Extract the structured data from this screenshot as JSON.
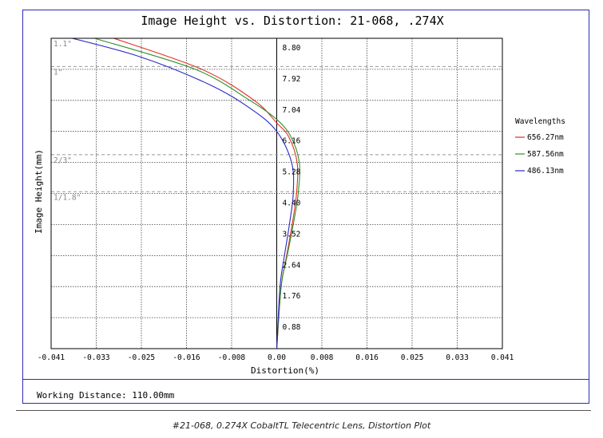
{
  "chart_data": {
    "type": "line",
    "title": "Image Height vs. Distortion: 21-068, .274X",
    "xlabel": "Distortion(%)",
    "ylabel": "Image Height(mm)",
    "xlim": [
      -0.041,
      0.041
    ],
    "ylim": [
      0,
      8.8
    ],
    "x_ticks": [
      "-0.041",
      "-0.033",
      "-0.025",
      "-0.016",
      "-0.008",
      "0.00",
      "0.008",
      "0.016",
      "0.025",
      "0.033",
      "0.041"
    ],
    "y_ticks": [
      "0.88",
      "1.76",
      "2.64",
      "3.52",
      "4.40",
      "5.28",
      "6.16",
      "7.04",
      "7.92",
      "8.80"
    ],
    "grid": true,
    "legend_title": "Wavelengths",
    "legend_position": "right",
    "sensor_formats": [
      {
        "label": "1.1\"",
        "height": 8.8
      },
      {
        "label": "1\"",
        "height": 8.0
      },
      {
        "label": "2/3\"",
        "height": 5.5
      },
      {
        "label": "1/1.8\"",
        "height": 4.45
      }
    ],
    "series": [
      {
        "name": "656.27nm",
        "color": "#e03020",
        "points": [
          [
            0,
            0
          ],
          [
            0.0008,
            1.76
          ],
          [
            0.0018,
            2.64
          ],
          [
            0.0028,
            3.52
          ],
          [
            0.0036,
            4.4
          ],
          [
            0.0037,
            5.28
          ],
          [
            0.0022,
            6.0
          ],
          [
            0.0,
            6.4
          ],
          [
            -0.0041,
            7.04
          ],
          [
            -0.0136,
            7.92
          ],
          [
            -0.0296,
            8.8
          ]
        ]
      },
      {
        "name": "587.56nm",
        "color": "#309030",
        "points": [
          [
            0,
            0
          ],
          [
            0.0008,
            1.76
          ],
          [
            0.0019,
            2.64
          ],
          [
            0.003,
            3.52
          ],
          [
            0.0039,
            4.4
          ],
          [
            0.0041,
            5.28
          ],
          [
            0.0026,
            6.0
          ],
          [
            0.0,
            6.5
          ],
          [
            -0.0049,
            7.04
          ],
          [
            -0.0148,
            7.92
          ],
          [
            -0.0331,
            8.8
          ]
        ]
      },
      {
        "name": "486.13nm",
        "color": "#2828c8",
        "points": [
          [
            0,
            0
          ],
          [
            0.0006,
            1.76
          ],
          [
            0.0014,
            2.64
          ],
          [
            0.0023,
            3.52
          ],
          [
            0.003,
            4.4
          ],
          [
            0.0027,
            5.28
          ],
          [
            0.0,
            6.16
          ],
          [
            -0.0047,
            6.8
          ],
          [
            -0.0124,
            7.5
          ],
          [
            -0.0253,
            8.3
          ],
          [
            -0.041,
            8.95
          ]
        ]
      }
    ]
  },
  "footer": {
    "working_distance": "Working Distance: 110.00mm"
  },
  "caption": "#21-068, 0.274X CobaltTL Telecentric Lens, Distortion Plot"
}
